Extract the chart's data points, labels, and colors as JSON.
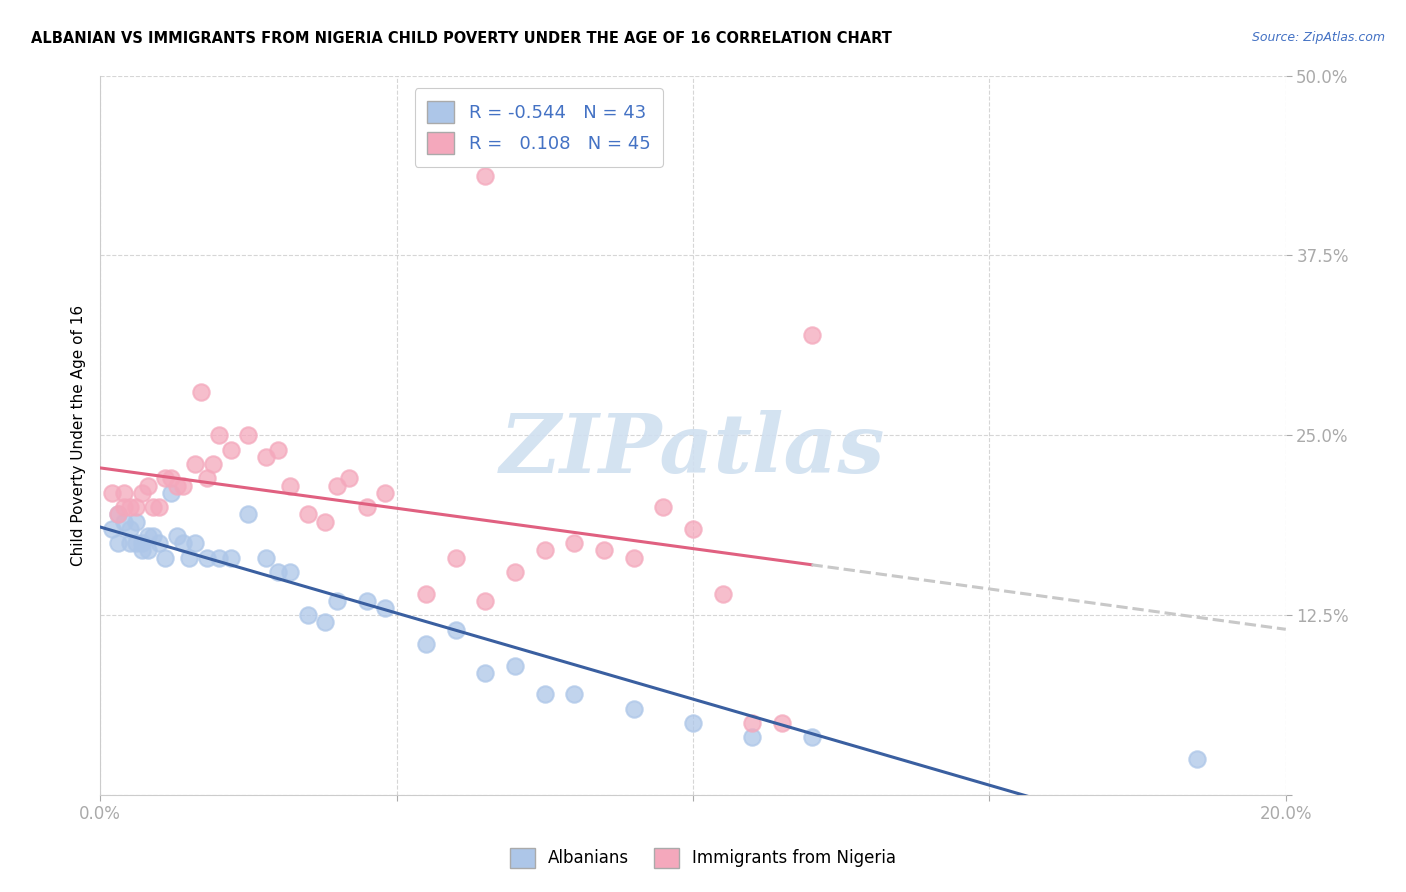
{
  "title": "ALBANIAN VS IMMIGRANTS FROM NIGERIA CHILD POVERTY UNDER THE AGE OF 16 CORRELATION CHART",
  "source": "Source: ZipAtlas.com",
  "ylabel": "Child Poverty Under the Age of 16",
  "xlim": [
    0.0,
    0.2
  ],
  "ylim": [
    0.0,
    0.5
  ],
  "xticks": [
    0.0,
    0.05,
    0.1,
    0.15,
    0.2
  ],
  "xtick_labels": [
    "0.0%",
    "",
    "",
    "",
    "20.0%"
  ],
  "yticks": [
    0.0,
    0.125,
    0.25,
    0.375,
    0.5
  ],
  "ytick_labels": [
    "",
    "12.5%",
    "25.0%",
    "37.5%",
    "50.0%"
  ],
  "albanian_R": -0.544,
  "albanian_N": 43,
  "nigeria_R": 0.108,
  "nigeria_N": 45,
  "albanian_color": "#adc6e8",
  "nigeria_color": "#f4a8bc",
  "albanian_line_color": "#3a5fa0",
  "nigeria_line_color": "#e06080",
  "nigeria_dash_color": "#c8c8c8",
  "watermark_text": "ZIPatlas",
  "watermark_color": "#d0e0f0",
  "albanian_x": [
    0.002,
    0.003,
    0.003,
    0.004,
    0.005,
    0.005,
    0.006,
    0.006,
    0.007,
    0.007,
    0.008,
    0.008,
    0.009,
    0.01,
    0.011,
    0.012,
    0.013,
    0.014,
    0.015,
    0.016,
    0.018,
    0.02,
    0.022,
    0.025,
    0.028,
    0.03,
    0.032,
    0.035,
    0.038,
    0.04,
    0.045,
    0.048,
    0.055,
    0.06,
    0.065,
    0.07,
    0.075,
    0.08,
    0.09,
    0.1,
    0.11,
    0.12,
    0.185
  ],
  "albanian_y": [
    0.185,
    0.195,
    0.175,
    0.19,
    0.185,
    0.175,
    0.175,
    0.19,
    0.175,
    0.17,
    0.17,
    0.18,
    0.18,
    0.175,
    0.165,
    0.21,
    0.18,
    0.175,
    0.165,
    0.175,
    0.165,
    0.165,
    0.165,
    0.195,
    0.165,
    0.155,
    0.155,
    0.125,
    0.12,
    0.135,
    0.135,
    0.13,
    0.105,
    0.115,
    0.085,
    0.09,
    0.07,
    0.07,
    0.06,
    0.05,
    0.04,
    0.04,
    0.025
  ],
  "nigeria_x": [
    0.002,
    0.003,
    0.004,
    0.004,
    0.005,
    0.006,
    0.007,
    0.008,
    0.009,
    0.01,
    0.011,
    0.012,
    0.013,
    0.014,
    0.016,
    0.017,
    0.018,
    0.019,
    0.02,
    0.022,
    0.025,
    0.028,
    0.03,
    0.032,
    0.035,
    0.038,
    0.04,
    0.042,
    0.045,
    0.048,
    0.055,
    0.06,
    0.065,
    0.07,
    0.075,
    0.08,
    0.085,
    0.09,
    0.095,
    0.1,
    0.105,
    0.11,
    0.115,
    0.12,
    0.065
  ],
  "nigeria_y": [
    0.21,
    0.195,
    0.2,
    0.21,
    0.2,
    0.2,
    0.21,
    0.215,
    0.2,
    0.2,
    0.22,
    0.22,
    0.215,
    0.215,
    0.23,
    0.28,
    0.22,
    0.23,
    0.25,
    0.24,
    0.25,
    0.235,
    0.24,
    0.215,
    0.195,
    0.19,
    0.215,
    0.22,
    0.2,
    0.21,
    0.14,
    0.165,
    0.135,
    0.155,
    0.17,
    0.175,
    0.17,
    0.165,
    0.2,
    0.185,
    0.14,
    0.05,
    0.05,
    0.32,
    0.43
  ]
}
